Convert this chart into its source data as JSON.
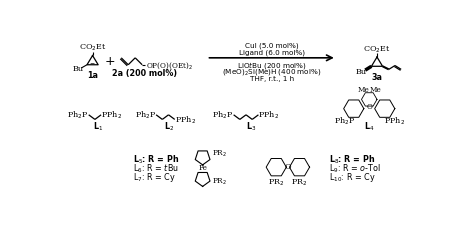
{
  "bg_color": "#ffffff",
  "fig_width": 4.74,
  "fig_height": 2.38,
  "dpi": 100,
  "conditions_above": [
    "CuI (5.0 mol%)",
    "Ligand (6.0 mol%)"
  ],
  "conditions_below": [
    "LiO$t$Bu (200 mol%)",
    "(MeO)$_2$Si(Me)H (400 mol%)",
    "THF, r.t., 1 h"
  ],
  "label_1a": "1a",
  "label_2a": "2a (200 mol%)",
  "label_3a": "3a",
  "l1_label": "L$_1$",
  "l2_label": "L$_2$",
  "l3_label": "L$_3$",
  "l4_label": "L$_4$",
  "l4_me1": "Me",
  "l4_me2": "Me",
  "l4_o": "O",
  "ligand_series_1": [
    "L$_5$: R = Ph",
    "L$_6$: R = $t$Bu",
    "L$_7$: R = Cy"
  ],
  "ligand_series_2": [
    "L$_8$: R = Ph",
    "L$_9$: R = $o$-Tol",
    "L$_{10}$: R = Cy"
  ],
  "fe_label": "Fe",
  "pr2_label": "PR$_2$",
  "co2et": "CO$_2$Et",
  "bu": "Bu",
  "ph2p": "Ph$_2$P",
  "pph2": "PPh$_2$"
}
